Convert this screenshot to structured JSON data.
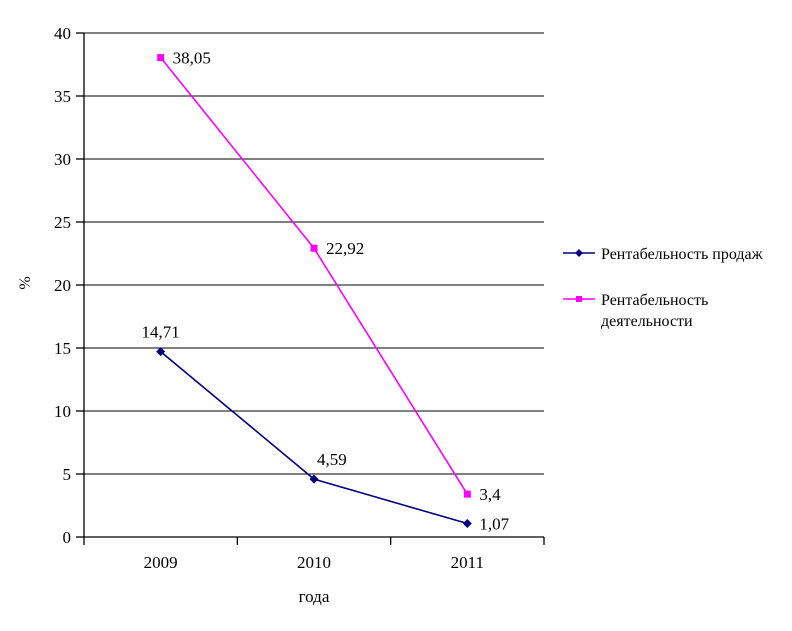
{
  "chart_data": {
    "type": "line",
    "title": "",
    "xlabel": "года",
    "ylabel": "%",
    "categories": [
      "2009",
      "2010",
      "2011"
    ],
    "series": [
      {
        "name": "Рентабельность продаж",
        "name_lines": [
          "Рентабельность продаж"
        ],
        "values": [
          14.71,
          4.59,
          1.07
        ],
        "labels": [
          "14,71",
          "4,59",
          "1,07"
        ],
        "color": "#000080",
        "marker": "diamond",
        "label_placement": [
          "above",
          "above-right",
          "right"
        ]
      },
      {
        "name": "Рентабельность деятельности",
        "name_lines": [
          "Рентабельность",
          "деятельности"
        ],
        "values": [
          38.05,
          22.92,
          3.4
        ],
        "labels": [
          "38,05",
          "22,92",
          "3,4"
        ],
        "color": "#FF00FF",
        "marker": "square",
        "label_placement": [
          "right",
          "right",
          "right"
        ]
      }
    ],
    "ylim": [
      0,
      40
    ],
    "ytick_step": 5,
    "ytick_labels": [
      "0",
      "5",
      "10",
      "15",
      "20",
      "25",
      "30",
      "35",
      "40"
    ],
    "grid": true,
    "legend_position": "right",
    "axis_color": "#000000",
    "grid_color": "#000000",
    "background_color": "#ffffff"
  }
}
